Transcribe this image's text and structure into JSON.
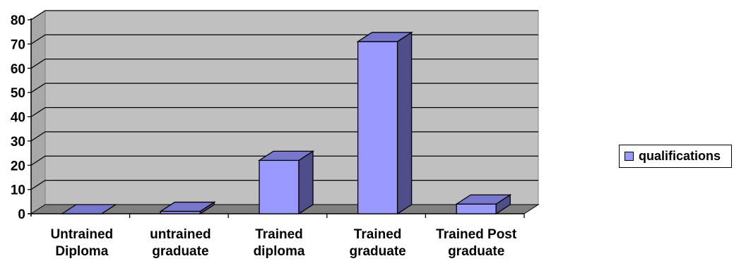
{
  "chart_data": {
    "type": "bar",
    "three_d": true,
    "categories": [
      [
        "Untrained",
        "Diploma"
      ],
      [
        "untrained",
        "graduate"
      ],
      [
        "Trained",
        "diploma"
      ],
      [
        "Trained",
        "graduate"
      ],
      [
        "Trained Post",
        "graduate"
      ]
    ],
    "series": [
      {
        "name": "qualifications",
        "values": [
          0,
          1,
          22,
          71,
          4
        ]
      }
    ],
    "title": "",
    "xlabel": "",
    "ylabel": "",
    "ylim": [
      0,
      80
    ],
    "yticks": [
      0,
      10,
      20,
      30,
      40,
      50,
      60,
      70,
      80
    ],
    "grid": true,
    "legend_position": "right",
    "colors": {
      "bar_front": "#9999ff",
      "bar_side": "#4e4e8a",
      "bar_top": "#7777cc",
      "wall": "#c0c0c0",
      "floor": "#808080"
    }
  }
}
